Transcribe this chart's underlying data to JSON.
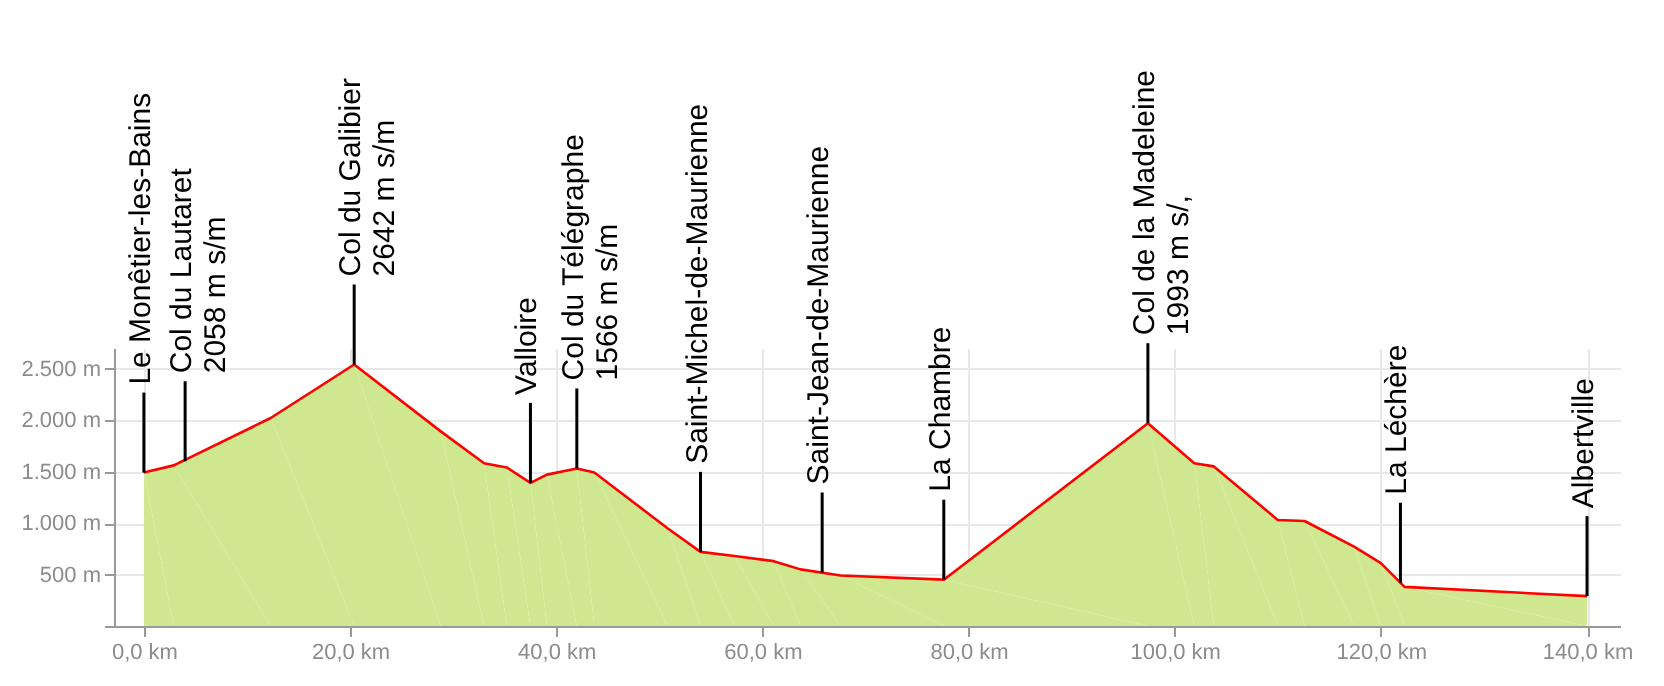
{
  "chart_data": {
    "type": "area",
    "x": [
      0,
      2.9,
      12.3,
      20.4,
      28.8,
      33.0,
      35.2,
      37.5,
      39.1,
      42.0,
      43.7,
      50.8,
      54.0,
      57.3,
      61.1,
      63.7,
      67.6,
      77.6,
      97.4,
      101.9,
      103.8,
      110.0,
      112.6,
      117.4,
      120.0,
      122.3,
      140
    ],
    "series": [
      {
        "color": "#cfe88f",
        "values": [
          1490,
          1560,
          2020,
          2540,
          1890,
          1580,
          1540,
          1390,
          1470,
          1530,
          1490,
          950,
          720,
          680,
          630,
          550,
          490,
          450,
          1970,
          1580,
          1550,
          1030,
          1020,
          770,
          610,
          380,
          290
        ]
      },
      {
        "type": "line",
        "color": "#ff0000",
        "values": [
          1490,
          1560,
          2020,
          2540,
          1890,
          1580,
          1540,
          1390,
          1470,
          1530,
          1490,
          950,
          720,
          680,
          630,
          550,
          490,
          450,
          1970,
          1580,
          1550,
          1030,
          1020,
          770,
          610,
          380,
          290
        ]
      }
    ],
    "xlim": [
      -2.9,
      143.2
    ],
    "ylim": [
      0,
      2700
    ],
    "xticks": [
      {
        "value": 0,
        "label": "0,0 km"
      },
      {
        "value": 20,
        "label": "20,0 km"
      },
      {
        "value": 40,
        "label": "40,0 km"
      },
      {
        "value": 60,
        "label": "60,0 km"
      },
      {
        "value": 80,
        "label": "80,0 km"
      },
      {
        "value": 100,
        "label": "100,0 km"
      },
      {
        "value": 120,
        "label": "120,0 km"
      },
      {
        "value": 140,
        "label": "140,0 km"
      }
    ],
    "yticks": [
      {
        "value": 0,
        "label": null
      },
      {
        "value": 500,
        "label": "500 m"
      },
      {
        "value": 1000,
        "label": "1.000 m"
      },
      {
        "value": 1500,
        "label": "1.500 m"
      },
      {
        "value": 2000,
        "label": "2.000 m"
      },
      {
        "value": 2500,
        "label": "2.500 m"
      }
    ],
    "grid": true,
    "annotations": [
      {
        "text": "Le Monêtier-les-Bains",
        "x": 0,
        "y": 1490
      },
      {
        "text": "Col du Lautaret\n2058 m s/m",
        "x": 4.0,
        "y": 1600
      },
      {
        "text": "Col du Galibier\n2642 m s/m",
        "x": 20.4,
        "y": 2540
      },
      {
        "text": "Valloire",
        "x": 37.5,
        "y": 1390
      },
      {
        "text": "Col du Télégraphe\n1566 m s/m",
        "x": 42.0,
        "y": 1530
      },
      {
        "text": "Saint-Michel-de-Maurienne",
        "x": 54.0,
        "y": 720
      },
      {
        "text": "Saint-Jean-de-Maurienne",
        "x": 65.8,
        "y": 520
      },
      {
        "text": "La Chambre",
        "x": 77.6,
        "y": 450
      },
      {
        "text": "Col de la Madeleine\n1993 m s/,",
        "x": 97.4,
        "y": 1970
      },
      {
        "text": "La Léchère",
        "x": 121.9,
        "y": 420
      },
      {
        "text": "Albertville",
        "x": 140,
        "y": 290
      }
    ]
  }
}
